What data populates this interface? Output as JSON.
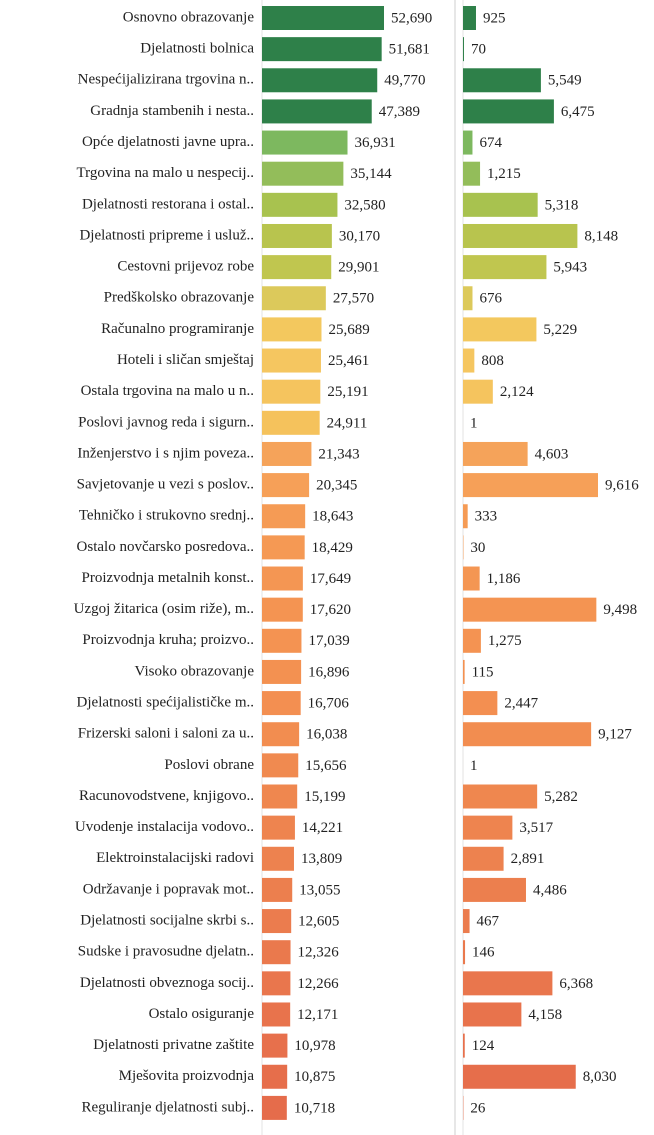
{
  "chart_data": {
    "type": "bar",
    "categories": [
      "Osnovno obrazovanje",
      "Djelatnosti bolnica",
      "Nespećijalizirana trgovina n..",
      "Gradnja stambenih i nesta..",
      "Opće djelatnosti javne upra..",
      "Trgovina na malo u nespecij..",
      "Djelatnosti restorana i ostal..",
      "Djelatnosti pripreme i usluž..",
      "Cestovni prijevoz robe",
      "Predškolsko obrazovanje",
      "Računalno programiranje",
      "Hoteli i sličan smještaj",
      "Ostala trgovina na malo u n..",
      "Poslovi javnog reda i sigurn..",
      "Inženjerstvo i s njim poveza..",
      "Savjetovanje u vezi s poslov..",
      "Tehničko i strukovno srednj..",
      "Ostalo novčarsko posredova..",
      "Proizvodnja metalnih konst..",
      "Uzgoj žitarica (osim riže), m..",
      "Proizvodnja kruha; proizvo..",
      "Visoko obrazovanje",
      "Djelatnosti spećijalističke m..",
      "Frizerski saloni i saloni za u..",
      "Poslovi obrane",
      "Racunovodstvene, knjigovo..",
      "Uvodenje instalacija vodovo..",
      "Elektroinstalacijski radovi",
      "Održavanje i popravak mot..",
      "Djelatnosti socijalne skrbi s..",
      "Sudske i pravosudne djelatn..",
      "Djelatnosti obveznoga socij..",
      "Ostalo osiguranje",
      "Djelatnosti privatne zaštite",
      "Mješovita proizvodnja",
      "Reguliranje djelatnosti subj.."
    ],
    "series": [
      {
        "values": [
          52690,
          51681,
          49770,
          47389,
          36931,
          35144,
          32580,
          30170,
          29901,
          27570,
          25689,
          25461,
          25191,
          24911,
          21343,
          20345,
          18643,
          18429,
          17649,
          17620,
          17039,
          16896,
          16706,
          16038,
          15656,
          15199,
          14221,
          13809,
          13055,
          12605,
          12326,
          12266,
          12171,
          10978,
          10875,
          10718
        ],
        "value_labels": [
          "52,690",
          "51,681",
          "49,770",
          "47,389",
          "36,931",
          "35,144",
          "32,580",
          "30,170",
          "29,901",
          "27,570",
          "25,689",
          "25,461",
          "25,191",
          "24,911",
          "21,343",
          "20,345",
          "18,643",
          "18,429",
          "17,649",
          "17,620",
          "17,039",
          "16,896",
          "16,706",
          "16,038",
          "15,656",
          "15,199",
          "14,221",
          "13,809",
          "13,055",
          "12,605",
          "12,326",
          "12,266",
          "12,171",
          "10,978",
          "10,875",
          "10,718"
        ]
      },
      {
        "values": [
          925,
          70,
          5549,
          6475,
          674,
          1215,
          5318,
          8148,
          5943,
          676,
          5229,
          808,
          2124,
          1,
          4603,
          9616,
          333,
          30,
          1186,
          9498,
          1275,
          115,
          2447,
          9127,
          1,
          5282,
          3517,
          2891,
          4486,
          467,
          146,
          6368,
          4158,
          124,
          8030,
          26
        ],
        "value_labels": [
          "925",
          "70",
          "5,549",
          "6,475",
          "674",
          "1,215",
          "5,318",
          "8,148",
          "5,943",
          "676",
          "5,229",
          "808",
          "2,124",
          "1",
          "4,603",
          "9,616",
          "333",
          "30",
          "1,186",
          "9,498",
          "1,275",
          "115",
          "2,447",
          "9,127",
          "1",
          "5,282",
          "3,517",
          "2,891",
          "4,486",
          "467",
          "146",
          "6,368",
          "4,158",
          "124",
          "8,030",
          "26"
        ]
      }
    ],
    "colors": [
      "#2e8049",
      "#2e8049",
      "#2e8049",
      "#2e8049",
      "#7db85f",
      "#93bd5a",
      "#a8c24f",
      "#b8c44e",
      "#c0c64f",
      "#dcc95b",
      "#f3c85e",
      "#f5c660",
      "#f5c45e",
      "#f5c25c",
      "#f5a35a",
      "#f6a058",
      "#f59b55",
      "#f59954",
      "#f49653",
      "#f49452",
      "#f49352",
      "#f39151",
      "#f38f51",
      "#f28d50",
      "#f08a50",
      "#ef874f",
      "#ee844f",
      "#ed824f",
      "#ec7f4e",
      "#eb7c4e",
      "#ea794d",
      "#e9764d",
      "#e8734c",
      "#e7704c",
      "#e66e4b",
      "#e56c4b"
    ]
  }
}
